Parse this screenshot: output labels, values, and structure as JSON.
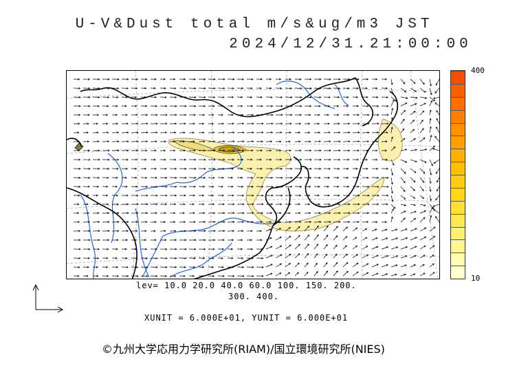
{
  "title": {
    "line1": "U-V&Dust total m/s&ug/m3 JST",
    "line2": "2024/12/31.21:00:00"
  },
  "colorbar": {
    "max_label": "400",
    "min_label": "10",
    "colors": [
      "#ffffd0",
      "#fffcb0",
      "#fff690",
      "#fff070",
      "#ffea50",
      "#ffe030",
      "#ffd818",
      "#ffcc10",
      "#ffc000",
      "#ffb000",
      "#ffa000",
      "#ff9000",
      "#ff8000",
      "#ff7000",
      "#f86000",
      "#f05000"
    ]
  },
  "legend": {
    "levels_line1": "lev= 10.0 20.0 40.0 60.0 100. 150. 200.",
    "levels_line2": "300. 400.",
    "units": "XUNIT = 6.000E+01, YUNIT = 6.000E+01"
  },
  "copyright": "©九州大学応用力学研究所(RIAM)/国立環境研究所(NIES)",
  "colors": {
    "river": "#1e64ff",
    "coast": "#000000",
    "dust_low": "#faf0b0",
    "dust_high": "#c8a800"
  }
}
